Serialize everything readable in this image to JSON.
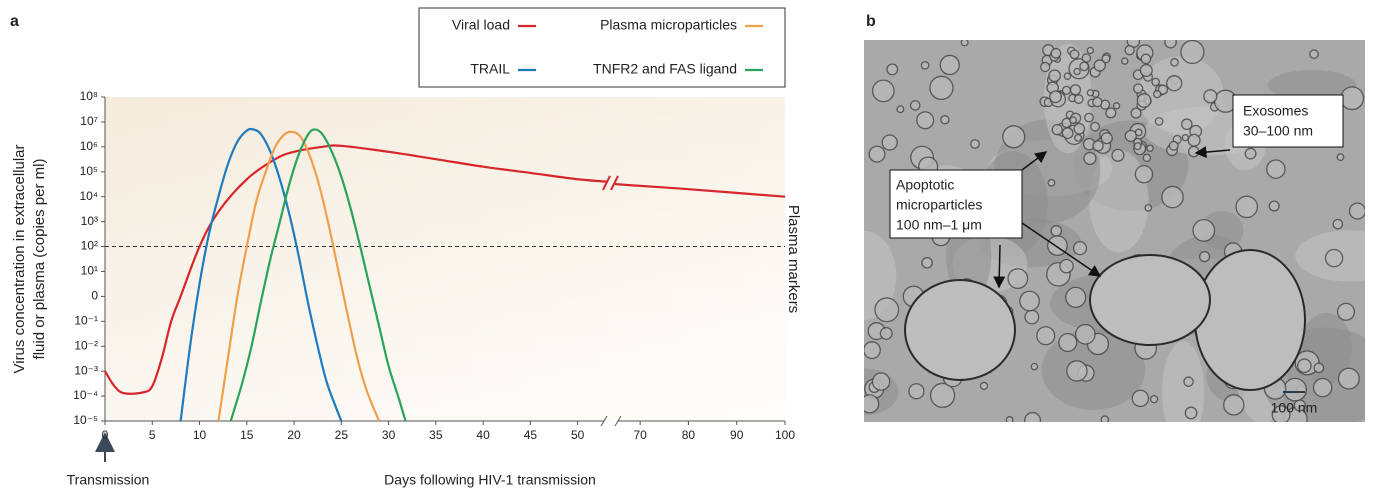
{
  "chart_data": {
    "type": "line",
    "panel_label": "a",
    "ylabel": [
      "Virus concentration in extracellular",
      "fluid or plasma (copies per ml)"
    ],
    "xlabel": "Days following HIV-1 transmission",
    "right_label": "Plasma markers",
    "annotation": "Transmission",
    "yscale": "log",
    "ylim": [
      1e-05,
      100000000.0
    ],
    "yticks": [
      {
        "value": 100000000.0,
        "label": "10⁸"
      },
      {
        "value": 10000000.0,
        "label": "10⁷"
      },
      {
        "value": 1000000.0,
        "label": "10⁶"
      },
      {
        "value": 100000.0,
        "label": "10⁵"
      },
      {
        "value": 10000.0,
        "label": "10⁴"
      },
      {
        "value": 1000.0,
        "label": "10³"
      },
      {
        "value": 100,
        "label": "10²"
      },
      {
        "value": 10,
        "label": "10¹"
      },
      {
        "value": 1,
        "label": "0"
      },
      {
        "value": 0.1,
        "label": "10⁻¹"
      },
      {
        "value": 0.01,
        "label": "10⁻²"
      },
      {
        "value": 0.001,
        "label": "10⁻³"
      },
      {
        "value": 0.0001,
        "label": "10⁻⁴"
      },
      {
        "value": 1e-05,
        "label": "10⁻⁵"
      }
    ],
    "xlim": [
      0,
      100
    ],
    "x_break": [
      53,
      65
    ],
    "xticks": [
      0,
      5,
      10,
      15,
      20,
      25,
      30,
      35,
      40,
      45,
      50,
      70,
      80,
      90,
      100
    ],
    "reference_line": 100,
    "legend": "top-right",
    "series": [
      {
        "name": "Viral load",
        "color": "#d7262b",
        "x": [
          0,
          1,
          2,
          4,
          5,
          6,
          7,
          8,
          10,
          12,
          15,
          18,
          20,
          23,
          25,
          30,
          35,
          40,
          45,
          50,
          53,
          65,
          80,
          100
        ],
        "values": [
          0.001,
          0.00025,
          0.00013,
          0.00014,
          0.00025,
          0.0032,
          0.1,
          1,
          100,
          2500,
          50000.0,
          320000.0,
          630000.0,
          1000000.0,
          1100000.0,
          630000.0,
          320000.0,
          160000.0,
          90000.0,
          50000.0,
          40000.0,
          32000.0,
          20000.0,
          10000.0
        ]
      },
      {
        "name": "TRAIL",
        "color": "#1f7bbf",
        "x": [
          8,
          9,
          10,
          11,
          12,
          13,
          14,
          15,
          15.7,
          16.5,
          17.5,
          18.5,
          19.5,
          20.5,
          21.5,
          22.5,
          23.5,
          25
        ],
        "values": [
          1e-05,
          0.01,
          3.2,
          320,
          10000.0,
          200000.0,
          1600000.0,
          4500000.0,
          5000000.0,
          3200000.0,
          630000.0,
          50000.0,
          2000,
          40,
          0.5,
          0.01,
          0.00032,
          1e-05
        ]
      },
      {
        "name": "Plasma microparticles",
        "color": "#f0a04b",
        "x": [
          12,
          13,
          14,
          15,
          16,
          17,
          18,
          19,
          19.8,
          20.7,
          21.7,
          22.7,
          23.7,
          24.7,
          25.7,
          26.7,
          27.7,
          29
        ],
        "values": [
          1e-05,
          0.0032,
          1,
          100,
          6300,
          100000.0,
          1000000.0,
          3200000.0,
          4000000.0,
          2500000.0,
          400000.0,
          25000.0,
          630,
          10,
          0.16,
          0.0032,
          0.00016,
          1e-05
        ]
      },
      {
        "name": "TNFR2 and FAS ligand",
        "color": "#2aa35a",
        "x": [
          13.3,
          14.5,
          15.5,
          16.5,
          17.5,
          18.5,
          19.5,
          20.5,
          21.5,
          22.2,
          23,
          24,
          25,
          26,
          27,
          28,
          29,
          30,
          31,
          31.8
        ],
        "values": [
          1e-05,
          0.00032,
          0.01,
          0.63,
          32,
          1000,
          32000.0,
          500000.0,
          3200000.0,
          5000000.0,
          3200000.0,
          630000.0,
          63000.0,
          3200,
          100,
          2.5,
          0.063,
          0.0016,
          0.0001,
          1e-05
        ]
      }
    ]
  },
  "panel_b": {
    "label": "b",
    "exosomes": [
      "Exosomes",
      "30–100 nm"
    ],
    "apoptotic": [
      "Apoptotic",
      "microparticles",
      "100 nm–1 μm"
    ],
    "scale_bar": "100 nm"
  }
}
